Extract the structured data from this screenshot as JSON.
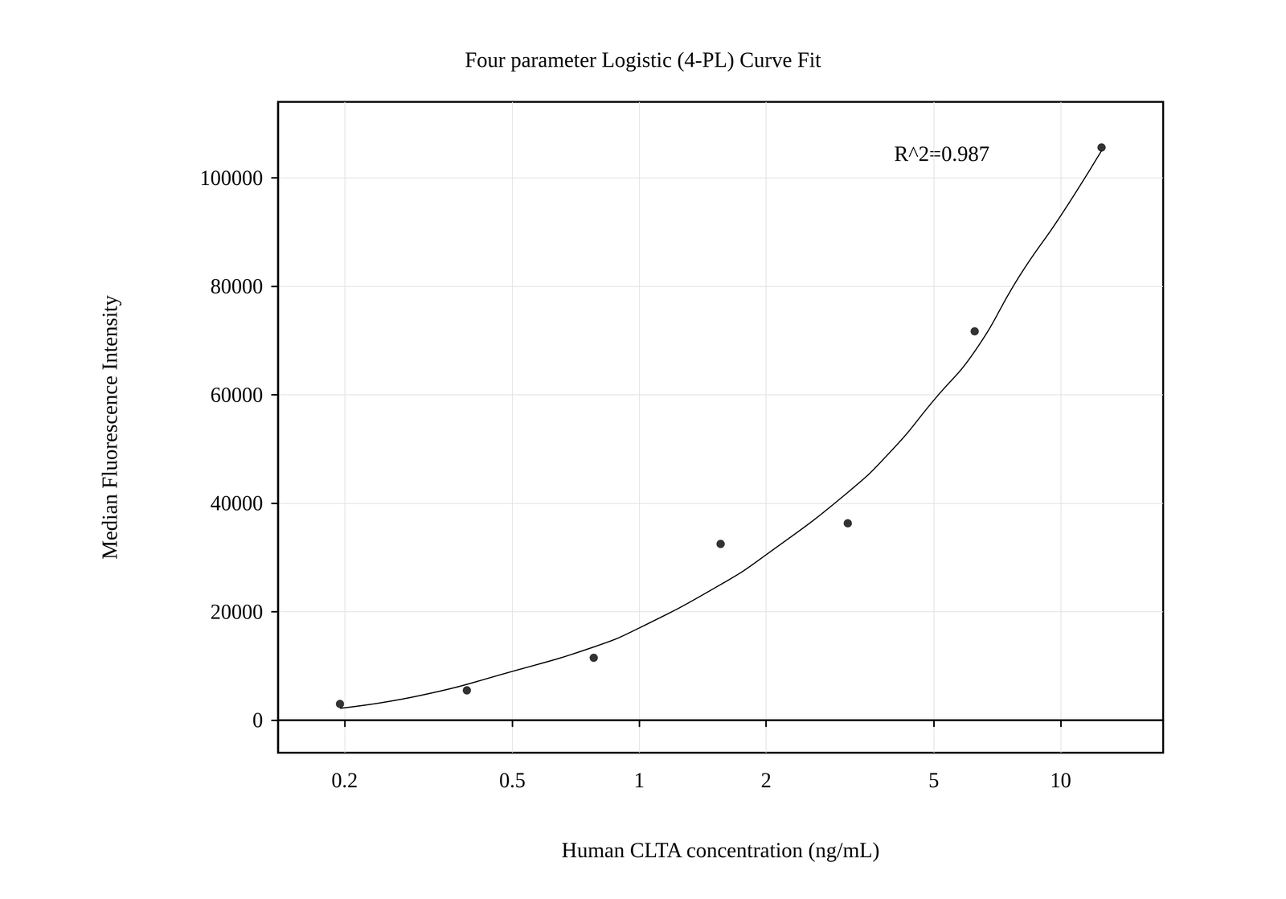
{
  "chart_data": {
    "type": "scatter",
    "title": "Four parameter Logistic (4-PL) Curve Fit",
    "x_label": "Human CLTA concentration (ng/mL)",
    "y_label": "Median Fluorescence Intensity",
    "annotations": [
      "R^2=0.987"
    ],
    "log": "x",
    "grid": true,
    "xlim": [
      0.139,
      17.5
    ],
    "xticks": [
      0.2,
      0.5,
      1,
      2,
      5,
      10
    ],
    "ylim": [
      -6000,
      114000
    ],
    "yticks": [
      0,
      20000,
      40000,
      60000,
      80000,
      100000
    ],
    "series": [
      {
        "type": "scatter",
        "color": "#000000",
        "marker": "circle",
        "x": [
          0.195,
          0.39,
          0.78,
          1.56,
          3.125,
          6.25,
          12.5
        ],
        "values": [
          3000,
          5500,
          11500,
          32500,
          36300,
          71700,
          105600
        ]
      },
      {
        "type": "line",
        "color": "#000000",
        "line_style": "solid",
        "x": [
          0.195,
          0.3,
          0.5,
          0.78,
          1,
          1.56,
          2,
          3.125,
          4,
          5,
          6.25,
          8,
          10,
          12.5
        ],
        "values": [
          2200,
          4500,
          9000,
          13500,
          17000,
          25000,
          30500,
          42000,
          50000,
          59000,
          68000,
          82000,
          93000,
          105000
        ]
      }
    ]
  }
}
